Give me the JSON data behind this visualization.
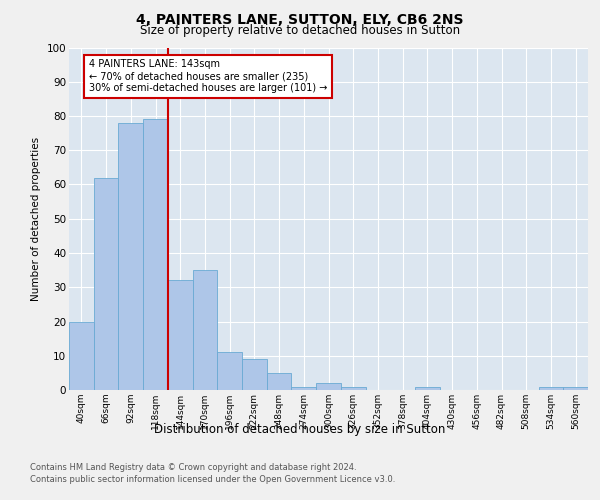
{
  "title1": "4, PAINTERS LANE, SUTTON, ELY, CB6 2NS",
  "title2": "Size of property relative to detached houses in Sutton",
  "xlabel": "Distribution of detached houses by size in Sutton",
  "ylabel": "Number of detached properties",
  "categories": [
    "40sqm",
    "66sqm",
    "92sqm",
    "118sqm",
    "144sqm",
    "170sqm",
    "196sqm",
    "222sqm",
    "248sqm",
    "274sqm",
    "300sqm",
    "326sqm",
    "352sqm",
    "378sqm",
    "404sqm",
    "430sqm",
    "456sqm",
    "482sqm",
    "508sqm",
    "534sqm",
    "560sqm"
  ],
  "values": [
    20,
    62,
    78,
    79,
    32,
    35,
    11,
    9,
    5,
    1,
    2,
    1,
    0,
    0,
    1,
    0,
    0,
    0,
    0,
    1,
    1
  ],
  "bar_color": "#aec6e8",
  "bar_edge_color": "#6aaad4",
  "marker_color": "#cc0000",
  "ylim": [
    0,
    100
  ],
  "annotation_text": "4 PAINTERS LANE: 143sqm\n← 70% of detached houses are smaller (235)\n30% of semi-detached houses are larger (101) →",
  "annotation_box_color": "#cc0000",
  "background_color": "#dce6f0",
  "fig_bg_color": "#f0f0f0",
  "footer1": "Contains HM Land Registry data © Crown copyright and database right 2024.",
  "footer2": "Contains public sector information licensed under the Open Government Licence v3.0."
}
